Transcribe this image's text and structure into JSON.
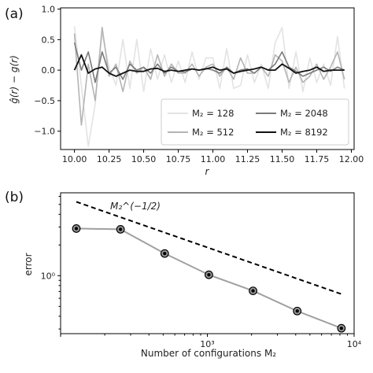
{
  "chart_data": [
    {
      "panel": "(a)",
      "type": "line",
      "xlabel": "r",
      "ylabel": "ĝ(r) − g(r)",
      "xlim": [
        9.9,
        12.02
      ],
      "ylim": [
        -1.3,
        1.02
      ],
      "xticks": [
        "10.00",
        "10.25",
        "10.50",
        "10.75",
        "11.00",
        "11.25",
        "11.50",
        "11.75",
        "12.00"
      ],
      "xtick_values": [
        10.0,
        10.25,
        10.5,
        10.75,
        11.0,
        11.25,
        11.5,
        11.75,
        12.0
      ],
      "yticks": [
        "1.0",
        "0.5",
        "0.0",
        "−0.5",
        "−1.0"
      ],
      "ytick_values": [
        1.0,
        0.5,
        0.0,
        -0.5,
        -1.0
      ],
      "legend_placement": "lower-right",
      "x": [
        10.0,
        10.05,
        10.1,
        10.15,
        10.2,
        10.25,
        10.3,
        10.35,
        10.4,
        10.45,
        10.5,
        10.55,
        10.6,
        10.65,
        10.7,
        10.75,
        10.8,
        10.85,
        10.9,
        10.95,
        11.0,
        11.05,
        11.1,
        11.15,
        11.2,
        11.25,
        11.3,
        11.35,
        11.4,
        11.45,
        11.5,
        11.55,
        11.6,
        11.65,
        11.7,
        11.75,
        11.8,
        11.85,
        11.9,
        11.95
      ],
      "series": [
        {
          "name": "M₂ = 128",
          "color": "#e3e3e3",
          "values": [
            0.72,
            -0.25,
            -1.25,
            -0.55,
            0.6,
            0.05,
            -0.25,
            0.5,
            -0.3,
            0.5,
            -0.35,
            0.35,
            -0.15,
            0.25,
            -0.2,
            0.15,
            -0.2,
            0.3,
            -0.15,
            0.2,
            0.2,
            -0.3,
            0.35,
            -0.3,
            -0.25,
            0.25,
            -0.2,
            0.1,
            -0.3,
            0.45,
            0.7,
            -0.3,
            0.3,
            -0.35,
            0.2,
            -0.2,
            0.1,
            -0.25,
            0.55,
            -0.3
          ]
        },
        {
          "name": "M₂ = 512",
          "color": "#b4b4b4",
          "values": [
            0.6,
            -0.9,
            0.1,
            -0.5,
            0.7,
            -0.1,
            0.1,
            -0.35,
            0.15,
            -0.05,
            0.05,
            -0.15,
            0.25,
            -0.1,
            0.1,
            -0.05,
            -0.05,
            0.1,
            -0.1,
            0.05,
            0.1,
            -0.1,
            0.05,
            -0.15,
            0.2,
            -0.05,
            -0.05,
            0.05,
            -0.1,
            0.25,
            0.15,
            -0.2,
            0.05,
            -0.2,
            -0.1,
            0.1,
            -0.15,
            0.05,
            0.3,
            -0.15
          ]
        },
        {
          "name": "M₂ = 2048",
          "color": "#7b7b7b",
          "values": [
            0.45,
            0.0,
            0.3,
            -0.2,
            0.3,
            -0.05,
            0.05,
            -0.15,
            0.1,
            0.0,
            0.05,
            -0.05,
            0.1,
            -0.05,
            0.05,
            -0.02,
            -0.03,
            0.02,
            0.0,
            0.03,
            0.0,
            -0.05,
            0.05,
            -0.05,
            0.0,
            0.02,
            -0.05,
            0.05,
            0.0,
            0.1,
            0.3,
            0.05,
            -0.02,
            -0.1,
            -0.05,
            0.0,
            0.05,
            -0.02,
            0.05,
            0.0
          ]
        },
        {
          "name": "M₂ = 8192",
          "color": "#111111",
          "values": [
            0.0,
            0.25,
            -0.05,
            0.02,
            0.05,
            -0.05,
            -0.1,
            -0.05,
            0.0,
            -0.02,
            -0.02,
            0.02,
            0.03,
            -0.02,
            0.0,
            -0.02,
            0.0,
            0.02,
            0.0,
            0.02,
            0.05,
            0.0,
            0.02,
            -0.05,
            -0.02,
            0.0,
            0.02,
            0.05,
            0.0,
            0.0,
            0.1,
            0.03,
            -0.05,
            -0.02,
            0.0,
            0.05,
            -0.02,
            0.0,
            0.0,
            0.0
          ]
        }
      ]
    },
    {
      "panel": "(b)",
      "type": "line",
      "xscale": "log",
      "yscale": "log",
      "xlabel": "Number of configurations M₂",
      "ylabel": "error",
      "xlim": [
        100,
        10000
      ],
      "ylim": [
        0.27,
        6.5
      ],
      "xticks": [
        "10³",
        "10⁴"
      ],
      "xtick_values": [
        1000,
        10000
      ],
      "yticks": [
        "10⁰"
      ],
      "ytick_values": [
        1
      ],
      "x": [
        128,
        256,
        512,
        1024,
        2048,
        4096,
        8192
      ],
      "series": [
        {
          "name": "",
          "color": "#a0a0a0",
          "marker": "double-circle",
          "values": [
            2.9,
            2.85,
            1.65,
            1.02,
            0.71,
            0.45,
            0.305
          ]
        },
        {
          "name": "M₂^(−1/2)",
          "style": "dashed",
          "color": "#000000",
          "x": [
            128,
            8192
          ],
          "values": [
            5.3,
            0.66
          ]
        }
      ],
      "annotation": "M₂^(−1/2)"
    }
  ]
}
